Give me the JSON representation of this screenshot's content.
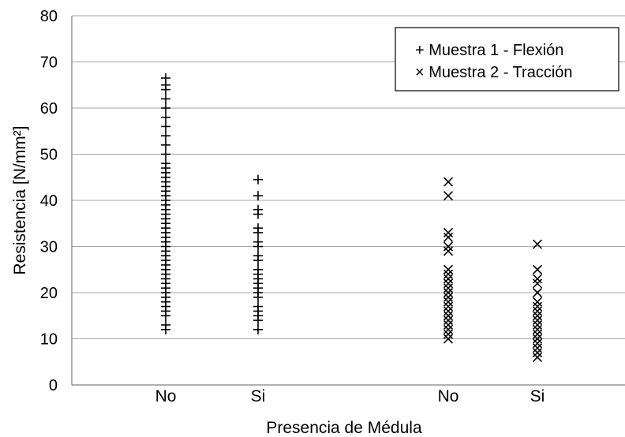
{
  "chart_data": {
    "type": "scatter",
    "xlabel": "Presencia de Médula",
    "ylabel": "Resistencia [N/mm²]",
    "ylim": [
      0,
      80
    ],
    "yticks": [
      0,
      10,
      20,
      30,
      40,
      50,
      60,
      70,
      80
    ],
    "grid": true,
    "legend_position": "top-right",
    "categories": [
      "No",
      "Si",
      "No",
      "Si"
    ],
    "series": [
      {
        "name": "+ Muestra 1 - Flexión",
        "marker": "plus",
        "groups": [
          {
            "category": "No",
            "y": [
              12,
              13,
              15,
              16,
              17,
              18,
              19,
              20,
              21,
              22,
              23,
              24,
              25,
              26,
              27,
              28,
              29,
              30,
              31,
              32,
              33,
              34,
              35,
              36,
              37,
              38,
              39,
              40,
              41,
              42,
              43,
              44,
              45,
              46,
              47,
              48,
              50,
              52,
              54,
              56,
              58,
              60,
              62,
              64,
              65,
              66.5
            ]
          },
          {
            "category": "Si",
            "y": [
              12,
              14,
              15,
              16,
              17,
              19,
              20,
              21,
              22,
              23,
              24,
              25,
              27,
              28,
              30,
              31,
              33,
              34,
              37,
              38,
              41,
              44.5
            ]
          }
        ]
      },
      {
        "name": "× Muestra 2 - Tracción",
        "marker": "cross",
        "groups": [
          {
            "category": "No",
            "y": [
              10,
              11,
              12,
              13,
              14,
              15,
              16,
              17,
              18,
              19,
              20,
              21,
              22,
              23,
              24,
              25,
              29,
              30,
              32,
              33,
              41,
              44
            ]
          },
          {
            "category": "Si",
            "y": [
              6,
              7,
              8,
              9,
              10,
              11,
              12,
              13,
              14,
              15,
              16,
              17,
              18,
              20,
              22,
              23,
              25,
              30.5
            ]
          }
        ]
      }
    ]
  }
}
